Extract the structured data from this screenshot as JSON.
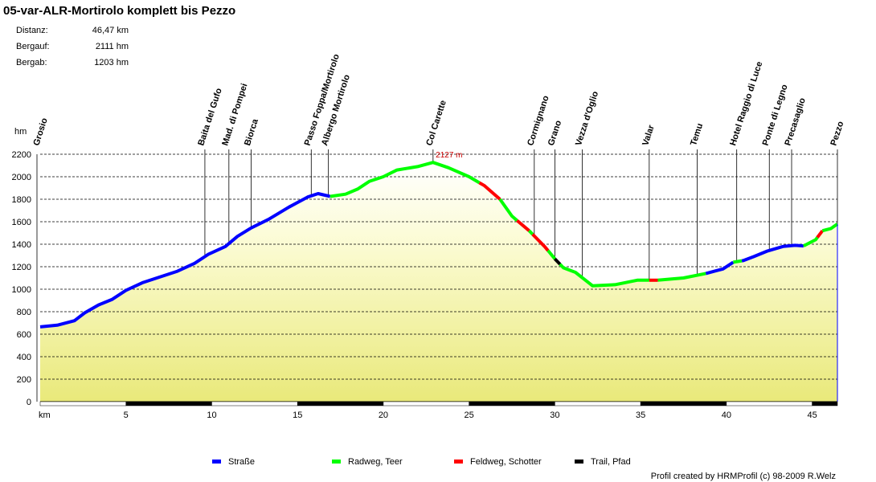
{
  "title": "05-var-ALR-Mortirolo komplett bis Pezzo",
  "stats": [
    {
      "label": "Distanz:",
      "value": "46,47 km"
    },
    {
      "label": "Bergauf:",
      "value": "2111 hm"
    },
    {
      "label": "Bergab:",
      "value": "1203 hm"
    }
  ],
  "legend": [
    {
      "label": "Straße",
      "color": "#0000ff"
    },
    {
      "label": "Radweg, Teer",
      "color": "#00ff00"
    },
    {
      "label": "Feldweg, Schotter",
      "color": "#ff0000"
    },
    {
      "label": "Trail, Pfad",
      "color": "#000000"
    }
  ],
  "credit": "Profil created by HRMProfil (c) 98-2009 R.Welz",
  "chart_data": {
    "type": "area",
    "ylabel": "hm",
    "xlabel": "km",
    "xlim": [
      0,
      46.47
    ],
    "ylim": [
      0,
      2200
    ],
    "yticks": [
      0,
      200,
      400,
      600,
      800,
      1000,
      1200,
      1400,
      1600,
      1800,
      2000,
      2200
    ],
    "xticks": [
      5,
      10,
      15,
      20,
      25,
      30,
      35,
      40,
      45
    ],
    "grid": "horizontal dashed",
    "max_label": "2127 m",
    "max_point": {
      "x": 22.9,
      "y": 2127
    },
    "profile": [
      [
        0,
        665
      ],
      [
        1,
        680
      ],
      [
        2,
        720
      ],
      [
        2.6,
        790
      ],
      [
        3.4,
        860
      ],
      [
        4.2,
        910
      ],
      [
        5,
        990
      ],
      [
        6,
        1060
      ],
      [
        7,
        1110
      ],
      [
        8,
        1160
      ],
      [
        9,
        1230
      ],
      [
        9.8,
        1310
      ],
      [
        10.8,
        1380
      ],
      [
        11.5,
        1470
      ],
      [
        12.3,
        1545
      ],
      [
        13.3,
        1620
      ],
      [
        14.5,
        1730
      ],
      [
        15.6,
        1820
      ],
      [
        16.2,
        1850
      ],
      [
        16.9,
        1825
      ],
      [
        17.8,
        1845
      ],
      [
        18.5,
        1890
      ],
      [
        19.2,
        1960
      ],
      [
        20,
        2000
      ],
      [
        20.8,
        2060
      ],
      [
        22,
        2090
      ],
      [
        22.9,
        2127
      ],
      [
        23.8,
        2080
      ],
      [
        25,
        2000
      ],
      [
        25.9,
        1920
      ],
      [
        26.8,
        1800
      ],
      [
        27.5,
        1650
      ],
      [
        28.5,
        1520
      ],
      [
        29.4,
        1380
      ],
      [
        30,
        1270
      ],
      [
        30.5,
        1190
      ],
      [
        31.2,
        1150
      ],
      [
        32.2,
        1030
      ],
      [
        33.5,
        1040
      ],
      [
        34.8,
        1080
      ],
      [
        36,
        1080
      ],
      [
        37.5,
        1100
      ],
      [
        38.8,
        1140
      ],
      [
        39.8,
        1180
      ],
      [
        40.4,
        1240
      ],
      [
        41,
        1255
      ],
      [
        41.6,
        1290
      ],
      [
        42.4,
        1340
      ],
      [
        43.3,
        1380
      ],
      [
        44,
        1390
      ],
      [
        44.5,
        1385
      ],
      [
        45.2,
        1440
      ],
      [
        45.6,
        1520
      ],
      [
        46.1,
        1540
      ],
      [
        46.47,
        1580
      ]
    ],
    "surface_segments": [
      {
        "from": 0,
        "to": 16.9,
        "type": "Straße"
      },
      {
        "from": 16.9,
        "to": 25.6,
        "type": "Radweg, Teer"
      },
      {
        "from": 25.6,
        "to": 26.8,
        "type": "Feldweg, Schotter"
      },
      {
        "from": 26.8,
        "to": 27.8,
        "type": "Radweg, Teer"
      },
      {
        "from": 27.8,
        "to": 28.5,
        "type": "Feldweg, Schotter"
      },
      {
        "from": 28.5,
        "to": 28.7,
        "type": "Radweg, Teer"
      },
      {
        "from": 28.7,
        "to": 29.6,
        "type": "Feldweg, Schotter"
      },
      {
        "from": 29.6,
        "to": 30,
        "type": "Radweg, Teer"
      },
      {
        "from": 30,
        "to": 30.3,
        "type": "Trail, Pfad"
      },
      {
        "from": 30.3,
        "to": 35.5,
        "type": "Radweg, Teer"
      },
      {
        "from": 35.5,
        "to": 36,
        "type": "Feldweg, Schotter"
      },
      {
        "from": 36,
        "to": 38.8,
        "type": "Radweg, Teer"
      },
      {
        "from": 38.8,
        "to": 40.4,
        "type": "Straße"
      },
      {
        "from": 40.4,
        "to": 40.9,
        "type": "Radweg, Teer"
      },
      {
        "from": 40.9,
        "to": 44.5,
        "type": "Straße"
      },
      {
        "from": 44.5,
        "to": 45.3,
        "type": "Radweg, Teer"
      },
      {
        "from": 45.3,
        "to": 45.6,
        "type": "Feldweg, Schotter"
      },
      {
        "from": 45.6,
        "to": 46.47,
        "type": "Radweg, Teer"
      }
    ],
    "waypoints": [
      {
        "name": "Grosio",
        "km": 0
      },
      {
        "name": "Baita del Gufo",
        "km": 9.6
      },
      {
        "name": "Mad. di Pompei",
        "km": 11
      },
      {
        "name": "Biorca",
        "km": 12.3
      },
      {
        "name": "Passo Foppa/Mortirolo",
        "km": 15.8
      },
      {
        "name": "Albergo Mortirolo",
        "km": 16.8
      },
      {
        "name": "Col Carette",
        "km": 22.9
      },
      {
        "name": "Cormignano",
        "km": 28.8
      },
      {
        "name": "Grano",
        "km": 30
      },
      {
        "name": "Vezza d'Oglio",
        "km": 31.6
      },
      {
        "name": "Valar",
        "km": 35.5
      },
      {
        "name": "Temu",
        "km": 38.3
      },
      {
        "name": "Hotel Raggio di Luce",
        "km": 40.6
      },
      {
        "name": "Ponte di Legno",
        "km": 42.5
      },
      {
        "name": "Precasaglio",
        "km": 43.8
      },
      {
        "name": "Pezzo",
        "km": 46.47
      }
    ]
  }
}
